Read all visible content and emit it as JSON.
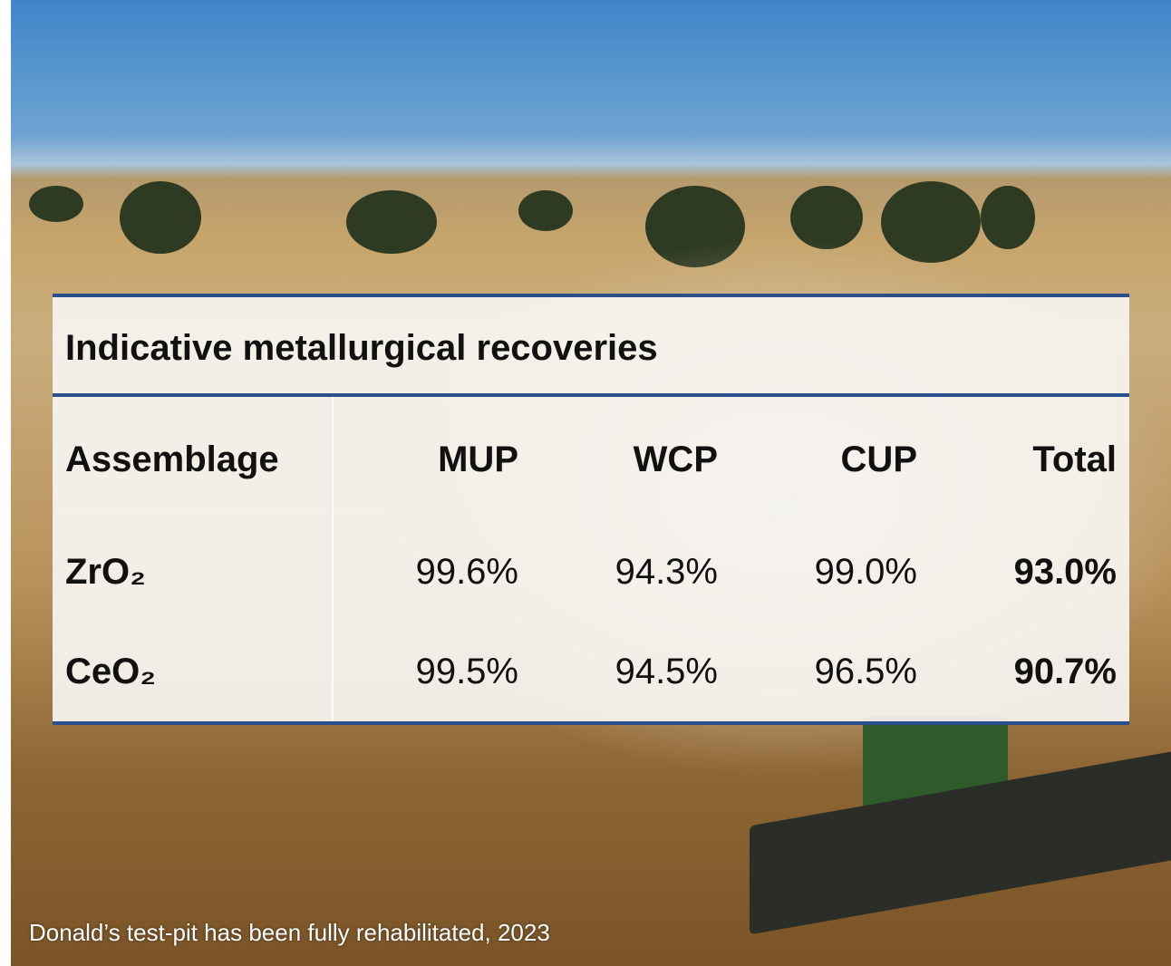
{
  "title": "Indicative metallurgical recoveries",
  "table": {
    "header": [
      "Assemblage",
      "MUP",
      "WCP",
      "CUP",
      "Total"
    ],
    "rows": [
      [
        "ZrO₂",
        "99.6%",
        "94.3%",
        "99.0%",
        "93.0%"
      ],
      [
        "CeO₂",
        "99.5%",
        "94.5%",
        "96.5%",
        "90.7%"
      ]
    ]
  },
  "caption": "Donald’s test-pit has been fully rehabilitated, 2023"
}
